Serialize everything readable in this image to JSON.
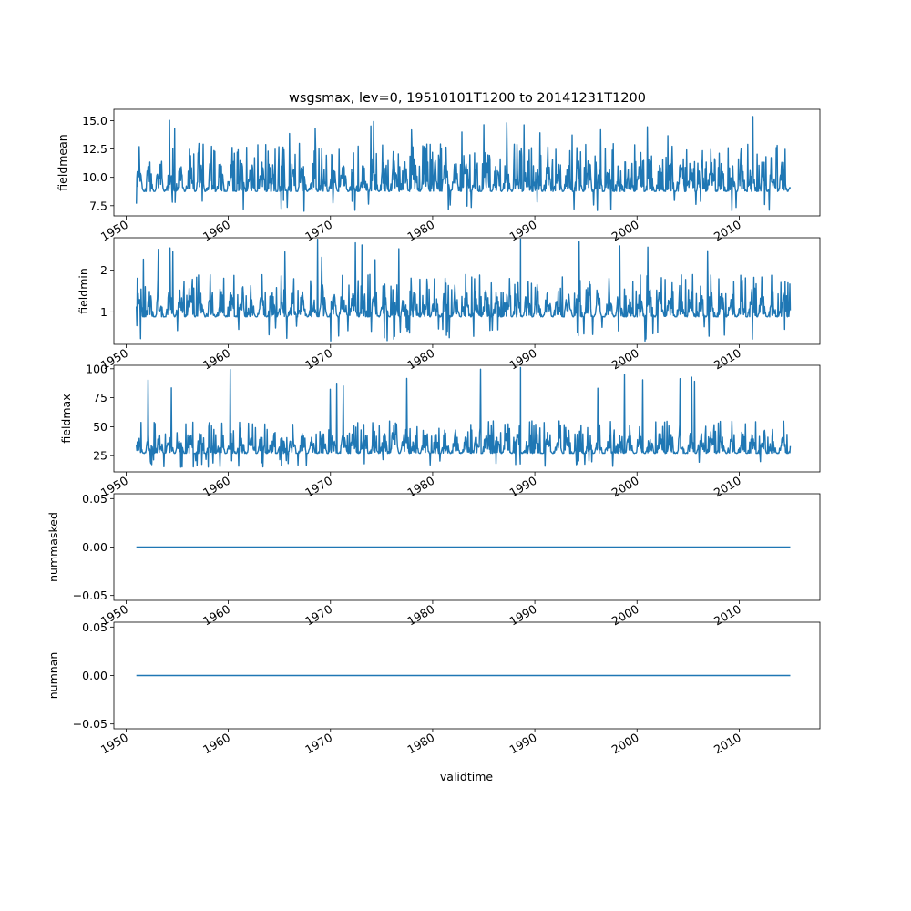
{
  "title": "wsgsmax, lev=0, 19510101T1200 to 20141231T1200",
  "xlabel": "validtime",
  "chart_data": [
    {
      "type": "line",
      "ylabel": "fieldmean",
      "ylim": [
        6.6,
        16.0
      ],
      "yticks": [
        7.5,
        10.0,
        12.5,
        15.0
      ],
      "ytick_labels": [
        "7.5",
        "10.0",
        "12.5",
        "15.0"
      ],
      "xlim": [
        1948.8,
        2017.9
      ],
      "xticks": [
        1950,
        1960,
        1970,
        1980,
        1990,
        2000,
        2010
      ],
      "xtick_labels": [
        "1950",
        "1960",
        "1970",
        "1980",
        "1990",
        "2000",
        "2010"
      ],
      "series": [
        {
          "x_start": 1951.0,
          "x_end": 2015.0,
          "baseline": 8.0,
          "typical_high": 13.0,
          "min": 7.0,
          "max": 15.4,
          "note_values": "dense daily series"
        }
      ]
    },
    {
      "type": "line",
      "ylabel": "fieldmin",
      "ylim": [
        0.22,
        2.78
      ],
      "yticks": [
        1,
        2
      ],
      "ytick_labels": [
        "1",
        "2"
      ],
      "xlim": [
        1948.8,
        2017.9
      ],
      "xticks": [
        1950,
        1960,
        1970,
        1980,
        1990,
        2000,
        2010
      ],
      "xtick_labels": [
        "1950",
        "1960",
        "1970",
        "1980",
        "1990",
        "2000",
        "2010"
      ],
      "series": [
        {
          "x_start": 1951.0,
          "x_end": 2015.0,
          "baseline": 0.7,
          "typical_high": 1.9,
          "min": 0.3,
          "max": 2.75,
          "note_values": "dense daily series"
        }
      ]
    },
    {
      "type": "line",
      "ylabel": "fieldmax",
      "ylim": [
        11,
        103
      ],
      "yticks": [
        25,
        50,
        75,
        100
      ],
      "ytick_labels": [
        "25",
        "50",
        "75",
        "100"
      ],
      "xlim": [
        1948.8,
        2017.9
      ],
      "xticks": [
        1950,
        1960,
        1970,
        1980,
        1990,
        2000,
        2010
      ],
      "xtick_labels": [
        "1950",
        "1960",
        "1970",
        "1980",
        "1990",
        "2000",
        "2010"
      ],
      "series": [
        {
          "x_start": 1951.0,
          "x_end": 2015.0,
          "baseline": 22,
          "typical_high": 55,
          "min": 15,
          "max": 101,
          "note_values": "dense daily series"
        }
      ]
    },
    {
      "type": "line",
      "ylabel": "nummasked",
      "ylim": [
        -0.055,
        0.055
      ],
      "yticks": [
        -0.05,
        0.0,
        0.05
      ],
      "ytick_labels": [
        "−0.05",
        "0.00",
        "0.05"
      ],
      "xlim": [
        1948.8,
        2017.9
      ],
      "xticks": [
        1950,
        1960,
        1970,
        1980,
        1990,
        2000,
        2010
      ],
      "xtick_labels": [
        "1950",
        "1960",
        "1970",
        "1980",
        "1990",
        "2000",
        "2010"
      ],
      "series": [
        {
          "x_start": 1951.0,
          "x_end": 2015.0,
          "constant": 0.0
        }
      ]
    },
    {
      "type": "line",
      "ylabel": "numnan",
      "ylim": [
        -0.055,
        0.055
      ],
      "yticks": [
        -0.05,
        0.0,
        0.05
      ],
      "ytick_labels": [
        "−0.05",
        "0.00",
        "0.05"
      ],
      "xlim": [
        1948.8,
        2017.9
      ],
      "xticks": [
        1950,
        1960,
        1970,
        1980,
        1990,
        2000,
        2010
      ],
      "xtick_labels": [
        "1950",
        "1960",
        "1970",
        "1980",
        "1990",
        "2000",
        "2010"
      ],
      "series": [
        {
          "x_start": 1951.0,
          "x_end": 2015.0,
          "constant": 0.0
        }
      ]
    }
  ],
  "colors": {
    "line": "#1f77b4",
    "axes": "#000000",
    "background": "#ffffff"
  }
}
